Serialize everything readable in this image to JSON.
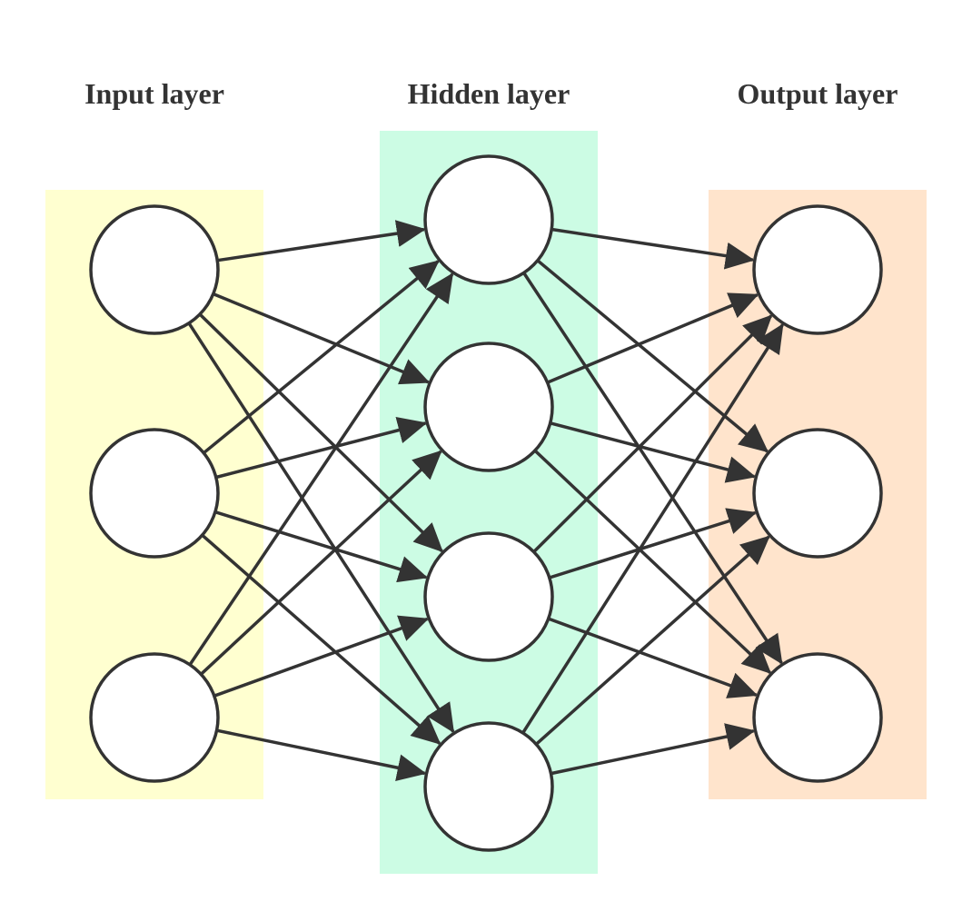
{
  "layers": [
    {
      "key": "input",
      "title": "Input layer",
      "node_count": 3,
      "color": "#ffffd0"
    },
    {
      "key": "hidden",
      "title": "Hidden layer",
      "node_count": 4,
      "color": "#ccfce4"
    },
    {
      "key": "output",
      "title": "Output layer",
      "node_count": 3,
      "color": "#ffe4cc"
    }
  ],
  "connectivity": "fully-connected",
  "edge_color": "#333333",
  "node_fill": "#ffffff"
}
